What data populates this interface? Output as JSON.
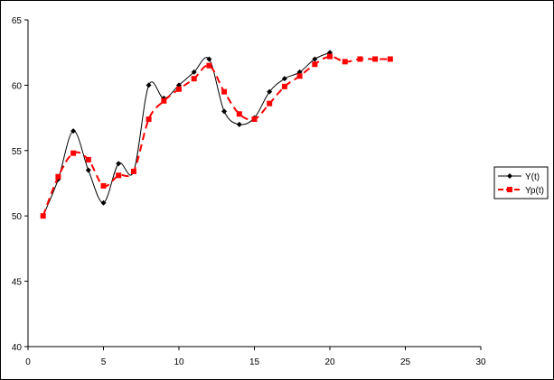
{
  "chart_data": {
    "type": "line",
    "title": "",
    "xlabel": "",
    "ylabel": "",
    "xlim": [
      0,
      30
    ],
    "ylim": [
      40,
      65
    ],
    "xticks": [
      0,
      5,
      10,
      15,
      20,
      25,
      30
    ],
    "yticks": [
      40,
      45,
      50,
      55,
      60,
      65
    ],
    "grid": false,
    "legend_position": "right",
    "series": [
      {
        "name": "Y(t)",
        "color": "#000000",
        "marker": "diamond",
        "style": "solid-smooth",
        "x": [
          1,
          2,
          3,
          4,
          5,
          6,
          7,
          8,
          9,
          10,
          11,
          12,
          13,
          14,
          15,
          16,
          17,
          18,
          19,
          20
        ],
        "values": [
          50,
          52.8,
          56.5,
          53.5,
          51,
          54,
          53.4,
          60,
          59,
          60,
          61,
          62,
          58,
          57,
          57.5,
          59.5,
          60.5,
          61,
          62,
          62.5
        ]
      },
      {
        "name": "Yp(t)",
        "color": "#ff0000",
        "marker": "square",
        "style": "dashed-smooth",
        "x": [
          1,
          2,
          3,
          4,
          5,
          6,
          7,
          8,
          9,
          10,
          11,
          12,
          13,
          14,
          15,
          16,
          17,
          18,
          19,
          20,
          21,
          22,
          23,
          24
        ],
        "values": [
          50,
          53,
          54.8,
          54.3,
          52.3,
          53.1,
          53.4,
          57.4,
          58.8,
          59.7,
          60.5,
          61.5,
          59.5,
          57.8,
          57.4,
          58.6,
          59.9,
          60.7,
          61.6,
          62.2,
          61.8,
          62,
          62,
          62
        ]
      }
    ]
  }
}
